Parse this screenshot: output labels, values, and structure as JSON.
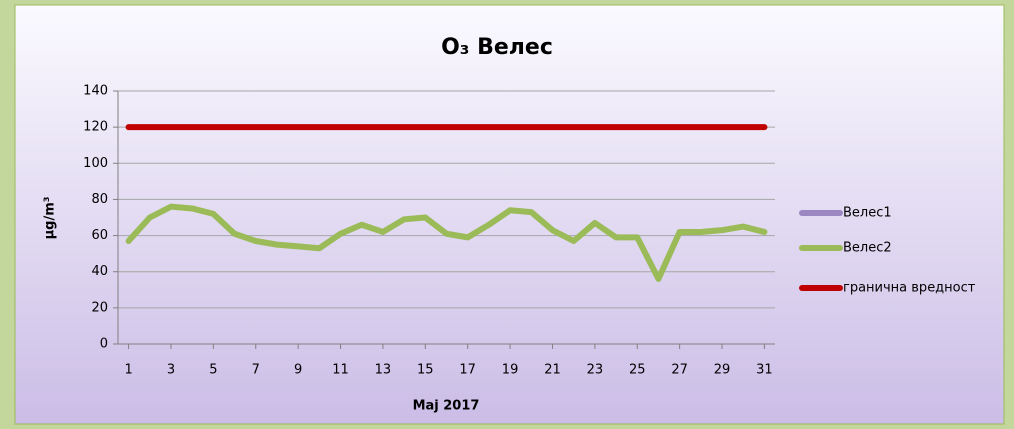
{
  "chart_data": {
    "type": "line",
    "title": "O₃ Велес",
    "x_label": "Мај 2017",
    "y_label": "µg/m³",
    "x": [
      1,
      2,
      3,
      4,
      5,
      6,
      7,
      8,
      9,
      10,
      11,
      12,
      13,
      14,
      15,
      16,
      17,
      18,
      19,
      20,
      21,
      22,
      23,
      24,
      25,
      26,
      27,
      28,
      29,
      30,
      31
    ],
    "xlim": [
      0.5,
      31.5
    ],
    "xticks": [
      1,
      3,
      5,
      7,
      9,
      11,
      13,
      15,
      17,
      19,
      21,
      23,
      25,
      27,
      29,
      31
    ],
    "ylim": [
      0,
      140
    ],
    "yticks": [
      0,
      20,
      40,
      60,
      80,
      100,
      120,
      140
    ],
    "grid": true,
    "legend": "right",
    "series": [
      {
        "name": "Велес1",
        "color": "#9b87c2",
        "values": [
          null,
          null,
          null,
          null,
          null,
          null,
          null,
          null,
          null,
          null,
          null,
          null,
          null,
          null,
          null,
          null,
          null,
          null,
          null,
          null,
          null,
          null,
          null,
          null,
          null,
          null,
          null,
          null,
          null,
          null,
          null
        ]
      },
      {
        "name": "Велес2",
        "color": "#9bbb59",
        "values": [
          57,
          70,
          76,
          75,
          72,
          61,
          57,
          55,
          54,
          53,
          61,
          66,
          62,
          69,
          70,
          61,
          59,
          66,
          74,
          73,
          63,
          57,
          67,
          59,
          59,
          36,
          62,
          62,
          63,
          65,
          62
        ]
      },
      {
        "name": "гранична вредност",
        "color": "#c00000",
        "values": [
          120,
          120,
          120,
          120,
          120,
          120,
          120,
          120,
          120,
          120,
          120,
          120,
          120,
          120,
          120,
          120,
          120,
          120,
          120,
          120,
          120,
          120,
          120,
          120,
          120,
          120,
          120,
          120,
          120,
          120,
          120
        ]
      }
    ]
  }
}
